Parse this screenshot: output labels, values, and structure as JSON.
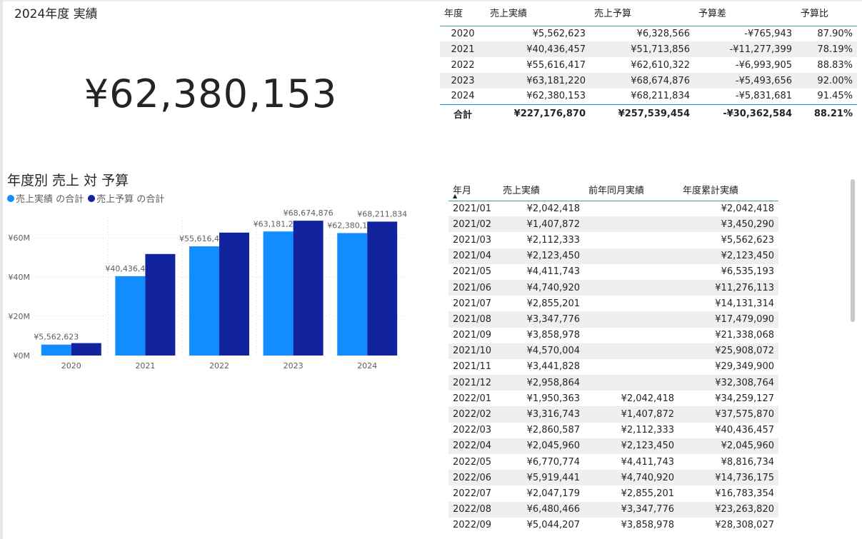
{
  "kpi": {
    "title": "2024年度 実績",
    "value": "¥62,380,153"
  },
  "summary_table": {
    "headers": [
      "年度",
      "売上実績",
      "売上予算",
      "予算差",
      "予算比"
    ],
    "rows": [
      [
        "2020",
        "¥5,562,623",
        "¥6,328,566",
        "-¥765,943",
        "87.90%"
      ],
      [
        "2021",
        "¥40,436,457",
        "¥51,713,856",
        "-¥11,277,399",
        "78.19%"
      ],
      [
        "2022",
        "¥55,616,417",
        "¥62,610,322",
        "-¥6,993,905",
        "88.83%"
      ],
      [
        "2023",
        "¥63,181,220",
        "¥68,674,876",
        "-¥5,493,656",
        "92.00%"
      ],
      [
        "2024",
        "¥62,380,153",
        "¥68,211,834",
        "-¥5,831,681",
        "91.45%"
      ]
    ],
    "total": [
      "合計",
      "¥227,176,870",
      "¥257,539,454",
      "-¥30,362,584",
      "88.21%"
    ]
  },
  "chart": {
    "title": "年度別 売上 対 予算",
    "legend": [
      "売上実績 の合計",
      "売上予算 の合計"
    ]
  },
  "chart_data": {
    "type": "bar",
    "title": "年度別 売上 対 予算",
    "categories": [
      "2020",
      "2021",
      "2022",
      "2023",
      "2024"
    ],
    "series": [
      {
        "name": "売上実績 の合計",
        "color": "#118dff",
        "values": [
          5562623,
          40436457,
          55616417,
          63181220,
          62380153
        ],
        "labels": [
          "¥5,562,623",
          "¥40,436,457",
          "¥55,616,417",
          "¥63,181,220",
          "¥62,380,153"
        ]
      },
      {
        "name": "売上予算 の合計",
        "color": "#12239e",
        "values": [
          6328566,
          51713856,
          62610322,
          68674876,
          68211834
        ],
        "labels": [
          "",
          "",
          "",
          "¥68,674,876",
          "¥68,211,834"
        ]
      }
    ],
    "yticks": [
      0,
      20000000,
      40000000,
      60000000
    ],
    "ytick_labels": [
      "¥0M",
      "¥20M",
      "¥40M",
      "¥60M"
    ],
    "ylim": [
      0,
      72000000
    ],
    "grid": true,
    "legend_position": "top-left"
  },
  "monthly_table": {
    "headers": [
      "年月",
      "売上実績",
      "前年同月実績",
      "年度累計実績"
    ],
    "sort_indicator": "▲",
    "rows": [
      [
        "2021/01",
        "¥2,042,418",
        "",
        "¥2,042,418"
      ],
      [
        "2021/02",
        "¥1,407,872",
        "",
        "¥3,450,290"
      ],
      [
        "2021/03",
        "¥2,112,333",
        "",
        "¥5,562,623"
      ],
      [
        "2021/04",
        "¥2,123,450",
        "",
        "¥2,123,450"
      ],
      [
        "2021/05",
        "¥4,411,743",
        "",
        "¥6,535,193"
      ],
      [
        "2021/06",
        "¥4,740,920",
        "",
        "¥11,276,113"
      ],
      [
        "2021/07",
        "¥2,855,201",
        "",
        "¥14,131,314"
      ],
      [
        "2021/08",
        "¥3,347,776",
        "",
        "¥17,479,090"
      ],
      [
        "2021/09",
        "¥3,858,978",
        "",
        "¥21,338,068"
      ],
      [
        "2021/10",
        "¥4,570,004",
        "",
        "¥25,908,072"
      ],
      [
        "2021/11",
        "¥3,441,828",
        "",
        "¥29,349,900"
      ],
      [
        "2021/12",
        "¥2,958,864",
        "",
        "¥32,308,764"
      ],
      [
        "2022/01",
        "¥1,950,363",
        "¥2,042,418",
        "¥34,259,127"
      ],
      [
        "2022/02",
        "¥3,316,743",
        "¥1,407,872",
        "¥37,575,870"
      ],
      [
        "2022/03",
        "¥2,860,587",
        "¥2,112,333",
        "¥40,436,457"
      ],
      [
        "2022/04",
        "¥2,045,960",
        "¥2,123,450",
        "¥2,045,960"
      ],
      [
        "2022/05",
        "¥6,770,774",
        "¥4,411,743",
        "¥8,816,734"
      ],
      [
        "2022/06",
        "¥5,919,441",
        "¥4,740,920",
        "¥14,736,175"
      ],
      [
        "2022/07",
        "¥2,047,179",
        "¥2,855,201",
        "¥16,783,354"
      ],
      [
        "2022/08",
        "¥6,480,466",
        "¥3,347,776",
        "¥23,263,820"
      ],
      [
        "2022/09",
        "¥5,044,207",
        "¥3,858,978",
        "¥28,308,027"
      ]
    ]
  }
}
